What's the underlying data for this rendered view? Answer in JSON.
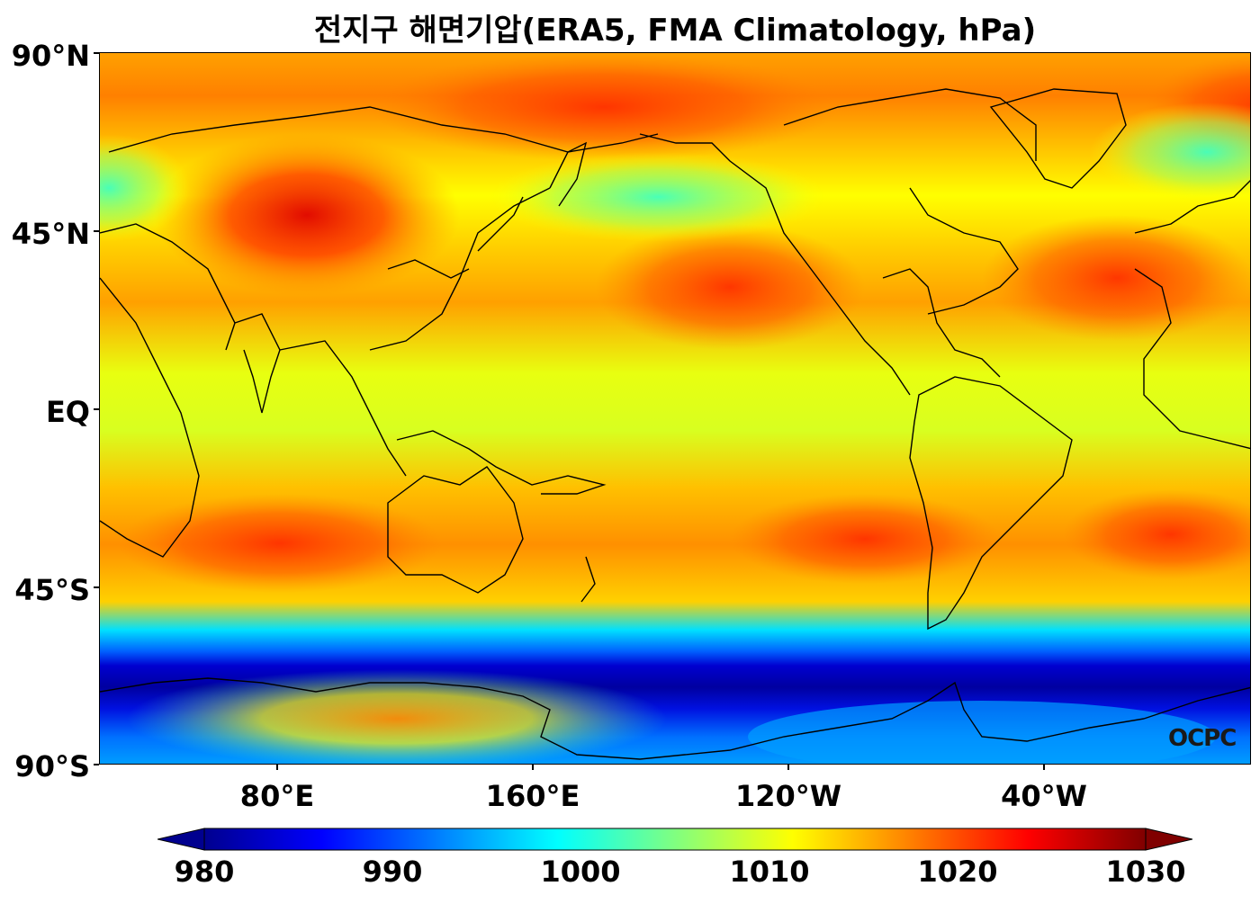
{
  "title": "전지구 해면기압(ERA5, FMA Climatology, hPa)",
  "map": {
    "lat_labels": [
      "90°N",
      "45°N",
      "EQ",
      "45°S",
      "90°S"
    ],
    "lon_labels": [
      "80°E",
      "160°E",
      "120°W",
      "40°W"
    ],
    "center_longitude": "180°",
    "watermark": "OCPC"
  },
  "colorbar": {
    "colormap": "jet",
    "min": 980,
    "max": 1030,
    "extend": "both",
    "tick_labels": [
      "980",
      "990",
      "1000",
      "1010",
      "1020",
      "1030"
    ],
    "colors": [
      "#00008f",
      "#0000ff",
      "#0080ff",
      "#00ffff",
      "#80ff80",
      "#ffff00",
      "#ff8000",
      "#ff0000",
      "#800000"
    ]
  }
}
